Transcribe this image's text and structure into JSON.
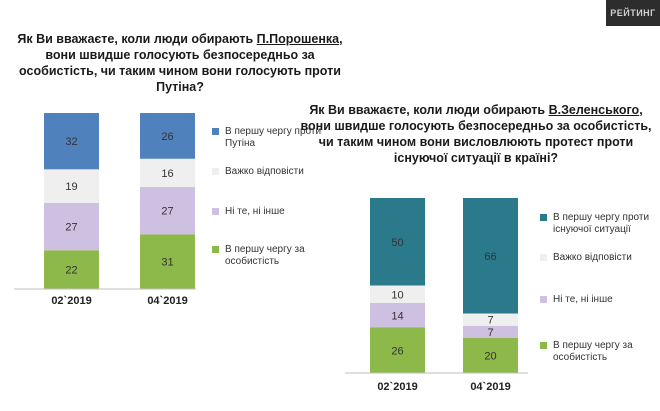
{
  "brand": {
    "logo_text": "РЕЙТИНГ"
  },
  "chart_data": [
    {
      "type": "bar",
      "stacked": true,
      "title_parts": [
        "Як Ви вважаєте, коли люди обирають ",
        "П.Порошенка",
        ", вони швидше голосують безпосередньо за особистість, чи таким чином вони голосують проти Путіна?"
      ],
      "categories": [
        "02`2019",
        "04`2019"
      ],
      "series": [
        {
          "name": "В першу чергу за особистість",
          "color": "#8db84a",
          "values": [
            22,
            31
          ]
        },
        {
          "name": "Ні те, ні інше",
          "color": "#cdc0e0",
          "values": [
            27,
            27
          ]
        },
        {
          "name": "Важко відповісти",
          "color": "#efefef",
          "values": [
            19,
            16
          ]
        },
        {
          "name": "В першу чергу проти Путіна",
          "color": "#4f81bd",
          "values": [
            32,
            26
          ]
        }
      ],
      "legend_order": [
        3,
        2,
        1,
        0
      ],
      "ylim": [
        0,
        100
      ]
    },
    {
      "type": "bar",
      "stacked": true,
      "title_parts": [
        "Як Ви вважаєте, коли люди обирають ",
        "В.Зеленського",
        ", вони швидше голосують безпосередньо за особистість, чи таким чином вони висловлюють протест проти існуючої ситуації в країні?"
      ],
      "categories": [
        "02`2019",
        "04`2019"
      ],
      "series": [
        {
          "name": "В першу чергу за особистість",
          "color": "#8db84a",
          "values": [
            26,
            20
          ]
        },
        {
          "name": "Ні те, ні інше",
          "color": "#cdc0e0",
          "values": [
            14,
            7
          ]
        },
        {
          "name": "Важко відповісти",
          "color": "#efefef",
          "values": [
            10,
            7
          ]
        },
        {
          "name": "В першу чергу проти існуючої ситуації",
          "color": "#2b7a8c",
          "values": [
            50,
            66
          ]
        }
      ],
      "legend_order": [
        3,
        2,
        1,
        0
      ],
      "ylim": [
        0,
        100
      ]
    }
  ]
}
